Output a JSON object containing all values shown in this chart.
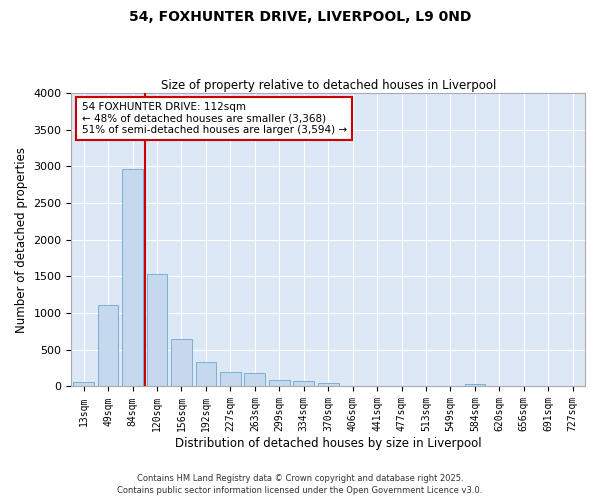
{
  "title_line1": "54, FOXHUNTER DRIVE, LIVERPOOL, L9 0ND",
  "title_line2": "Size of property relative to detached houses in Liverpool",
  "xlabel": "Distribution of detached houses by size in Liverpool",
  "ylabel": "Number of detached properties",
  "bar_color": "#c5d8ee",
  "bar_edge_color": "#7aafd4",
  "background_color": "#dce8f5",
  "grid_color": "#ffffff",
  "fig_background": "#ffffff",
  "categories": [
    "13sqm",
    "49sqm",
    "84sqm",
    "120sqm",
    "156sqm",
    "192sqm",
    "227sqm",
    "263sqm",
    "299sqm",
    "334sqm",
    "370sqm",
    "406sqm",
    "441sqm",
    "477sqm",
    "513sqm",
    "549sqm",
    "584sqm",
    "620sqm",
    "656sqm",
    "691sqm",
    "727sqm"
  ],
  "values": [
    55,
    1110,
    2970,
    1530,
    650,
    330,
    200,
    185,
    85,
    75,
    50,
    8,
    8,
    5,
    5,
    5,
    30,
    5,
    5,
    5,
    5
  ],
  "ylim": [
    0,
    4000
  ],
  "yticks": [
    0,
    500,
    1000,
    1500,
    2000,
    2500,
    3000,
    3500,
    4000
  ],
  "vline_color": "#cc0000",
  "annotation_text": "54 FOXHUNTER DRIVE: 112sqm\n← 48% of detached houses are smaller (3,368)\n51% of semi-detached houses are larger (3,594) →",
  "annotation_box_color": "#ffffff",
  "annotation_box_edge_color": "#cc0000",
  "footer_text": "Contains HM Land Registry data © Crown copyright and database right 2025.\nContains public sector information licensed under the Open Government Licence v3.0."
}
